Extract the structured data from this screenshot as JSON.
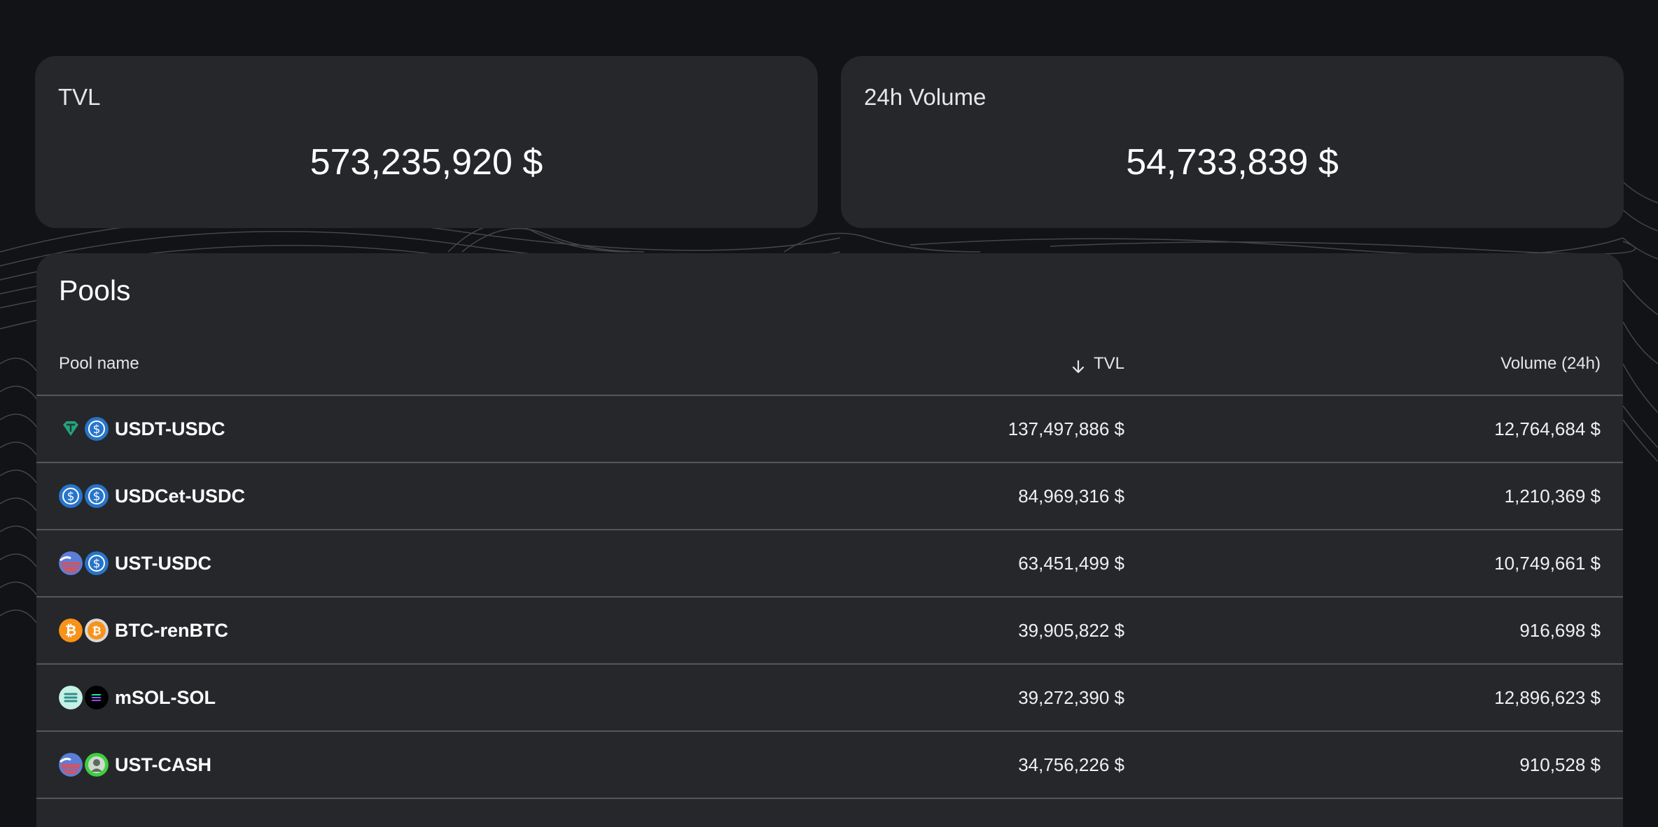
{
  "stats": {
    "tvl": {
      "label": "TVL",
      "value": "573,235,920 $"
    },
    "volume": {
      "label": "24h Volume",
      "value": "54,733,839 $"
    }
  },
  "pools": {
    "title": "Pools",
    "columns": {
      "name": "Pool name",
      "tvl": "TVL",
      "volume": "Volume (24h)"
    },
    "sort_icon": "arrow-down-icon",
    "rows": [
      {
        "name": "USDT-USDC",
        "tvl": "137,497,886 $",
        "volume": "12,764,684 $",
        "icons": [
          "usdt-icon",
          "usdc-icon"
        ]
      },
      {
        "name": "USDCet-USDC",
        "tvl": "84,969,316 $",
        "volume": "1,210,369 $",
        "icons": [
          "usdc-icon",
          "usdc-icon"
        ]
      },
      {
        "name": "UST-USDC",
        "tvl": "63,451,499 $",
        "volume": "10,749,661 $",
        "icons": [
          "ust-icon",
          "usdc-icon"
        ]
      },
      {
        "name": "BTC-renBTC",
        "tvl": "39,905,822 $",
        "volume": "916,698 $",
        "icons": [
          "btc-icon",
          "renbtc-icon"
        ]
      },
      {
        "name": "mSOL-SOL",
        "tvl": "39,272,390 $",
        "volume": "12,896,623 $",
        "icons": [
          "msol-icon",
          "sol-icon"
        ]
      },
      {
        "name": "UST-CASH",
        "tvl": "34,756,226 $",
        "volume": "910,528 $",
        "icons": [
          "ust-icon",
          "cash-icon"
        ]
      }
    ]
  },
  "colors": {
    "background": "#121317",
    "card": "#26272b",
    "divider": "#55565b",
    "usdc": "#2775ca",
    "usdt": "#26a17b",
    "btc": "#f7931a",
    "msol": "#c4f1e4"
  }
}
